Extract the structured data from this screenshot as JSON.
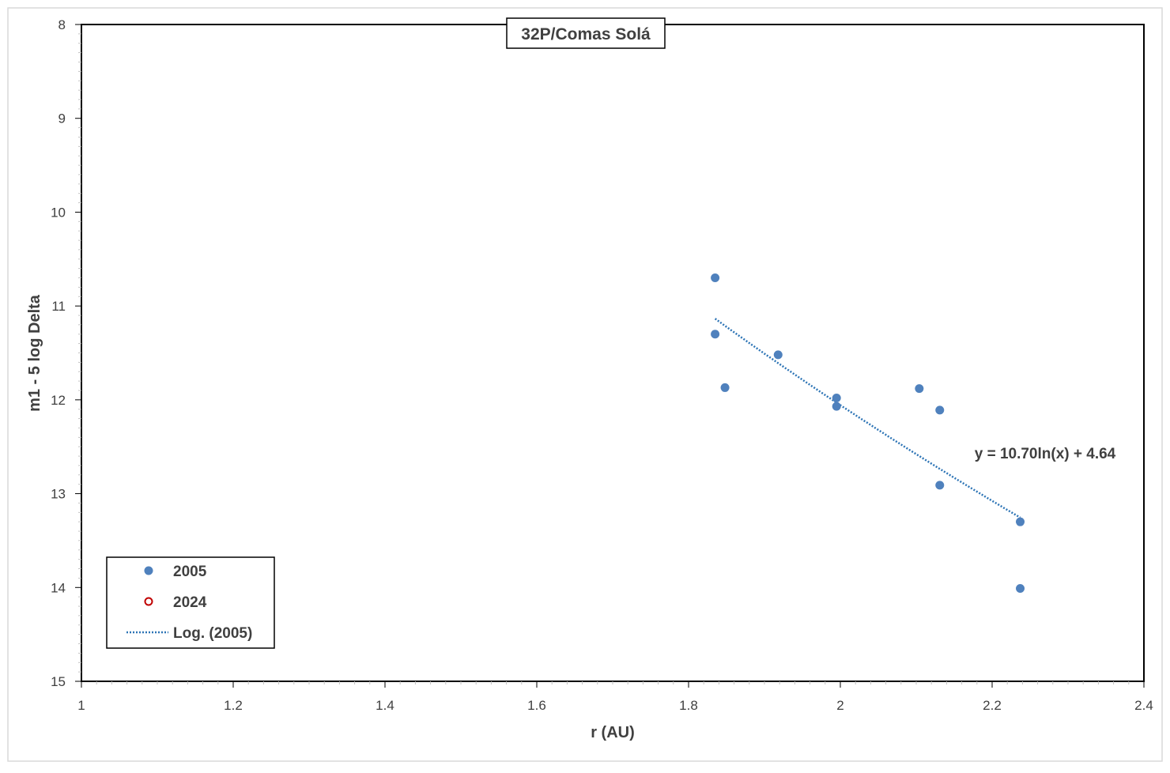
{
  "chart_data": {
    "type": "scatter",
    "title": "32P/Comas Solá",
    "xlabel": "r (AU)",
    "ylabel": "m1 - 5 log Delta",
    "xlim": [
      1,
      2.4
    ],
    "ylim": [
      8,
      15
    ],
    "y_inverted": true,
    "x_ticks": [
      "1",
      "1.2",
      "1.4",
      "1.6",
      "1.8",
      "2",
      "2.2",
      "2.4"
    ],
    "y_ticks": [
      "8",
      "9",
      "10",
      "11",
      "12",
      "13",
      "14",
      "15"
    ],
    "legend_position": "bottom-left",
    "grid": false,
    "series": [
      {
        "name": "2005",
        "marker": "filled-circle",
        "color": "#4f81bd",
        "points": [
          [
            1.835,
            10.7
          ],
          [
            1.835,
            11.3
          ],
          [
            1.848,
            11.87
          ],
          [
            1.918,
            11.52
          ],
          [
            1.995,
            11.98
          ],
          [
            1.995,
            12.07
          ],
          [
            2.104,
            11.88
          ],
          [
            2.131,
            12.11
          ],
          [
            2.131,
            12.91
          ],
          [
            2.237,
            13.3
          ],
          [
            2.237,
            14.01
          ]
        ]
      },
      {
        "name": "2024",
        "marker": "open-circle",
        "color": "#c00000",
        "points": []
      }
    ],
    "trendline": {
      "name": "Log. (2005)",
      "type": "logarithmic",
      "of_series": "2005",
      "a": 10.7,
      "b": 4.64,
      "x_range": [
        1.835,
        2.237
      ],
      "color": "#2e75b6",
      "equation": "y = 10.70ln(x) + 4.64"
    }
  }
}
